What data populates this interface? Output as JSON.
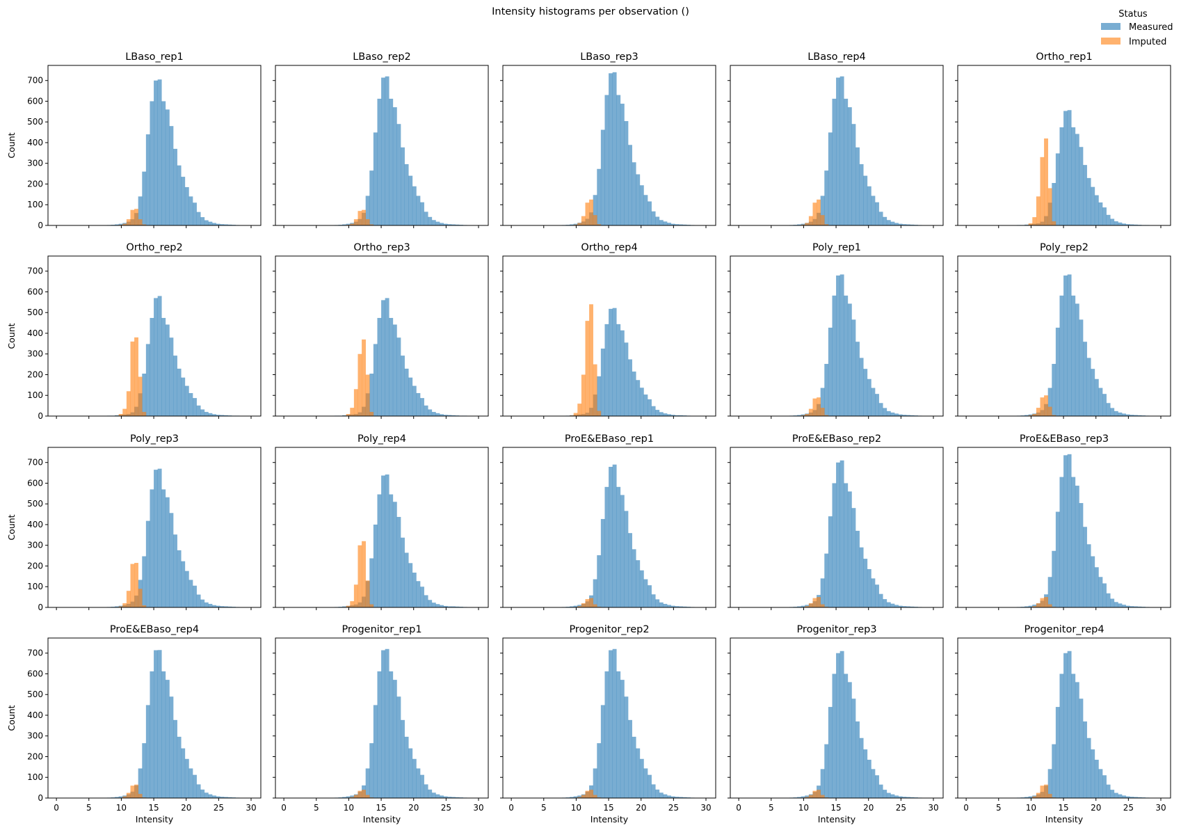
{
  "chart_data": {
    "type": "bar",
    "subtype": "histogram-grid",
    "title": "Intensity histograms per observation ()",
    "xlabel": "Intensity",
    "ylabel": "Count",
    "xlim": [
      -1.3,
      31.5
    ],
    "ylim": [
      0,
      773
    ],
    "xticks": [
      0,
      5,
      10,
      15,
      20,
      25,
      30
    ],
    "yticks": [
      0,
      100,
      200,
      300,
      400,
      500,
      600,
      700
    ],
    "grid": false,
    "sharex": true,
    "sharey": true,
    "bin_width": 0.6,
    "measured_start": 6.0,
    "imputed_start": 9.0,
    "legend": {
      "title": "Status",
      "placement": "top-right",
      "entries": [
        {
          "name": "Measured",
          "color": "#1f77b4"
        },
        {
          "name": "Imputed",
          "color": "#ff7f0e"
        }
      ]
    },
    "alpha": 0.6,
    "panels": [
      {
        "title": "LBaso_rep1",
        "measured": [
          0,
          0,
          1,
          2,
          3,
          5,
          8,
          12,
          18,
          30,
          60,
          140,
          260,
          440,
          600,
          700,
          705,
          600,
          560,
          480,
          370,
          290,
          235,
          185,
          140,
          110,
          65,
          40,
          25,
          18,
          12,
          8,
          6,
          5,
          4,
          3,
          2,
          1,
          1
        ],
        "imputed": [
          1,
          3,
          8,
          30,
          75,
          80,
          30,
          5
        ]
      },
      {
        "title": "LBaso_rep2",
        "measured": [
          0,
          0,
          1,
          2,
          3,
          5,
          8,
          12,
          18,
          31,
          61,
          143,
          265,
          449,
          612,
          714,
          720,
          612,
          571,
          490,
          377,
          296,
          240,
          189,
          143,
          112,
          66,
          41,
          26,
          18,
          12,
          8,
          6,
          5,
          4,
          3,
          2,
          1,
          1
        ],
        "imputed": [
          1,
          3,
          8,
          30,
          70,
          75,
          30,
          5
        ]
      },
      {
        "title": "LBaso_rep3",
        "measured": [
          0,
          0,
          1,
          2,
          3,
          5,
          8,
          13,
          19,
          32,
          63,
          147,
          273,
          462,
          630,
          735,
          740,
          630,
          588,
          504,
          389,
          305,
          247,
          194,
          147,
          116,
          68,
          42,
          26,
          19,
          13,
          8,
          6,
          5,
          4,
          3,
          2,
          1,
          1
        ],
        "imputed": [
          1,
          4,
          12,
          45,
          110,
          125,
          50,
          6
        ]
      },
      {
        "title": "LBaso_rep4",
        "measured": [
          0,
          0,
          1,
          2,
          3,
          5,
          8,
          12,
          18,
          31,
          61,
          143,
          265,
          449,
          612,
          714,
          720,
          612,
          571,
          490,
          377,
          296,
          240,
          189,
          143,
          112,
          66,
          41,
          26,
          18,
          12,
          8,
          6,
          5,
          4,
          3,
          2,
          1,
          1
        ],
        "imputed": [
          1,
          4,
          12,
          45,
          110,
          125,
          50,
          6
        ]
      },
      {
        "title": "Ortho_rep1",
        "measured": [
          0,
          0,
          1,
          2,
          2,
          4,
          6,
          8,
          10,
          18,
          45,
          110,
          205,
          348,
          474,
          553,
          557,
          474,
          442,
          379,
          292,
          229,
          186,
          146,
          111,
          87,
          51,
          32,
          20,
          14,
          9,
          6,
          5,
          4,
          3,
          2,
          2,
          1,
          1
        ],
        "imputed": [
          2,
          10,
          40,
          140,
          330,
          420,
          180,
          20
        ]
      },
      {
        "title": "Ortho_rep2",
        "measured": [
          0,
          0,
          1,
          2,
          2,
          4,
          6,
          8,
          10,
          18,
          45,
          110,
          205,
          348,
          474,
          570,
          580,
          474,
          442,
          379,
          292,
          229,
          186,
          146,
          111,
          87,
          51,
          32,
          20,
          14,
          9,
          6,
          5,
          4,
          3,
          2,
          2,
          1,
          1
        ],
        "imputed": [
          2,
          10,
          35,
          120,
          360,
          380,
          190,
          20
        ]
      },
      {
        "title": "Ortho_rep3",
        "measured": [
          0,
          0,
          1,
          2,
          2,
          4,
          6,
          8,
          10,
          18,
          45,
          110,
          205,
          348,
          474,
          560,
          570,
          474,
          442,
          379,
          292,
          229,
          186,
          146,
          111,
          87,
          51,
          32,
          20,
          14,
          9,
          6,
          5,
          4,
          3,
          2,
          2,
          1,
          1
        ],
        "imputed": [
          2,
          10,
          40,
          130,
          300,
          370,
          200,
          20
        ]
      },
      {
        "title": "Ortho_rep4",
        "measured": [
          0,
          0,
          1,
          1,
          2,
          4,
          6,
          8,
          10,
          16,
          40,
          104,
          192,
          326,
          444,
          518,
          522,
          444,
          414,
          355,
          274,
          215,
          174,
          137,
          104,
          81,
          48,
          30,
          19,
          13,
          9,
          6,
          4,
          4,
          3,
          2,
          1,
          1,
          1
        ],
        "imputed": [
          3,
          15,
          60,
          200,
          460,
          540,
          250,
          25
        ]
      },
      {
        "title": "Poly_rep1",
        "measured": [
          0,
          0,
          1,
          2,
          3,
          5,
          8,
          12,
          17,
          29,
          58,
          136,
          252,
          427,
          582,
          679,
          684,
          582,
          543,
          466,
          359,
          281,
          228,
          179,
          136,
          107,
          63,
          39,
          24,
          17,
          12,
          8,
          6,
          5,
          4,
          3,
          2,
          1,
          1
        ],
        "imputed": [
          1,
          4,
          10,
          35,
          85,
          90,
          40,
          5
        ]
      },
      {
        "title": "Poly_rep2",
        "measured": [
          0,
          0,
          1,
          2,
          3,
          5,
          8,
          12,
          17,
          29,
          58,
          136,
          252,
          427,
          582,
          679,
          684,
          582,
          543,
          466,
          359,
          281,
          228,
          179,
          136,
          107,
          63,
          39,
          24,
          17,
          12,
          8,
          6,
          5,
          4,
          3,
          2,
          1,
          1
        ],
        "imputed": [
          1,
          4,
          10,
          40,
          90,
          100,
          45,
          5
        ]
      },
      {
        "title": "Poly_rep3",
        "measured": [
          0,
          0,
          1,
          2,
          3,
          5,
          8,
          11,
          17,
          28,
          57,
          133,
          247,
          418,
          570,
          665,
          670,
          570,
          532,
          456,
          352,
          276,
          223,
          176,
          133,
          105,
          62,
          38,
          24,
          17,
          11,
          8,
          6,
          5,
          4,
          3,
          2,
          1,
          1
        ],
        "imputed": [
          1,
          5,
          20,
          80,
          210,
          215,
          90,
          10
        ]
      },
      {
        "title": "Poly_rep4",
        "measured": [
          0,
          0,
          1,
          2,
          3,
          5,
          7,
          10,
          14,
          24,
          52,
          127,
          237,
          400,
          546,
          637,
          642,
          546,
          510,
          437,
          337,
          264,
          214,
          168,
          127,
          100,
          59,
          36,
          23,
          16,
          11,
          7,
          5,
          5,
          4,
          3,
          2,
          1,
          1
        ],
        "imputed": [
          2,
          8,
          30,
          110,
          300,
          320,
          130,
          15
        ]
      },
      {
        "title": "ProE&EBaso_rep1",
        "measured": [
          0,
          0,
          1,
          2,
          3,
          5,
          8,
          12,
          17,
          29,
          58,
          136,
          252,
          427,
          582,
          679,
          690,
          582,
          543,
          466,
          359,
          281,
          228,
          179,
          136,
          107,
          63,
          39,
          24,
          17,
          12,
          8,
          6,
          5,
          4,
          3,
          2,
          1,
          1
        ],
        "imputed": [
          0,
          2,
          6,
          20,
          40,
          45,
          15,
          3
        ]
      },
      {
        "title": "ProE&EBaso_rep2",
        "measured": [
          0,
          0,
          1,
          2,
          3,
          5,
          8,
          12,
          18,
          30,
          60,
          140,
          260,
          440,
          600,
          700,
          710,
          600,
          560,
          480,
          370,
          290,
          235,
          185,
          140,
          110,
          65,
          40,
          25,
          18,
          12,
          8,
          6,
          5,
          4,
          3,
          2,
          1,
          1
        ],
        "imputed": [
          0,
          2,
          6,
          20,
          45,
          50,
          15,
          3
        ]
      },
      {
        "title": "ProE&EBaso_rep3",
        "measured": [
          0,
          0,
          1,
          2,
          3,
          5,
          8,
          13,
          19,
          32,
          63,
          147,
          273,
          462,
          630,
          735,
          740,
          630,
          588,
          504,
          389,
          305,
          247,
          194,
          147,
          116,
          68,
          42,
          26,
          19,
          13,
          8,
          6,
          5,
          4,
          3,
          2,
          1,
          1
        ],
        "imputed": [
          0,
          2,
          6,
          20,
          45,
          50,
          15,
          3
        ]
      },
      {
        "title": "ProE&EBaso_rep4",
        "measured": [
          0,
          0,
          1,
          2,
          3,
          5,
          8,
          12,
          18,
          31,
          61,
          143,
          265,
          449,
          612,
          714,
          715,
          612,
          571,
          490,
          377,
          296,
          240,
          189,
          143,
          112,
          66,
          41,
          26,
          18,
          12,
          8,
          6,
          5,
          4,
          3,
          2,
          1,
          1
        ],
        "imputed": [
          0,
          2,
          8,
          25,
          60,
          65,
          20,
          3
        ]
      },
      {
        "title": "Progenitor_rep1",
        "measured": [
          0,
          0,
          1,
          2,
          3,
          5,
          8,
          12,
          18,
          31,
          61,
          143,
          265,
          449,
          612,
          714,
          720,
          612,
          571,
          490,
          377,
          296,
          240,
          189,
          143,
          112,
          66,
          41,
          26,
          18,
          12,
          8,
          6,
          5,
          4,
          3,
          2,
          1,
          1
        ],
        "imputed": [
          0,
          2,
          5,
          15,
          35,
          40,
          15,
          3
        ]
      },
      {
        "title": "Progenitor_rep2",
        "measured": [
          0,
          0,
          1,
          2,
          3,
          5,
          8,
          12,
          18,
          31,
          61,
          143,
          265,
          449,
          612,
          714,
          720,
          612,
          571,
          490,
          377,
          296,
          240,
          189,
          143,
          112,
          66,
          41,
          26,
          18,
          12,
          8,
          6,
          5,
          4,
          3,
          2,
          1,
          1
        ],
        "imputed": [
          0,
          2,
          5,
          15,
          35,
          40,
          15,
          3
        ]
      },
      {
        "title": "Progenitor_rep3",
        "measured": [
          0,
          0,
          1,
          2,
          3,
          5,
          8,
          12,
          18,
          30,
          60,
          140,
          260,
          440,
          600,
          700,
          710,
          600,
          560,
          480,
          370,
          290,
          235,
          185,
          140,
          110,
          65,
          40,
          25,
          18,
          12,
          8,
          6,
          5,
          4,
          3,
          2,
          1,
          1
        ],
        "imputed": [
          0,
          2,
          5,
          15,
          35,
          40,
          15,
          3
        ]
      },
      {
        "title": "Progenitor_rep4",
        "measured": [
          0,
          0,
          1,
          2,
          3,
          5,
          8,
          12,
          18,
          30,
          60,
          140,
          260,
          440,
          600,
          700,
          710,
          600,
          560,
          480,
          370,
          290,
          235,
          185,
          140,
          110,
          65,
          40,
          25,
          18,
          12,
          8,
          6,
          5,
          4,
          3,
          2,
          1,
          1
        ],
        "imputed": [
          0,
          2,
          8,
          25,
          60,
          65,
          20,
          3
        ]
      }
    ]
  }
}
